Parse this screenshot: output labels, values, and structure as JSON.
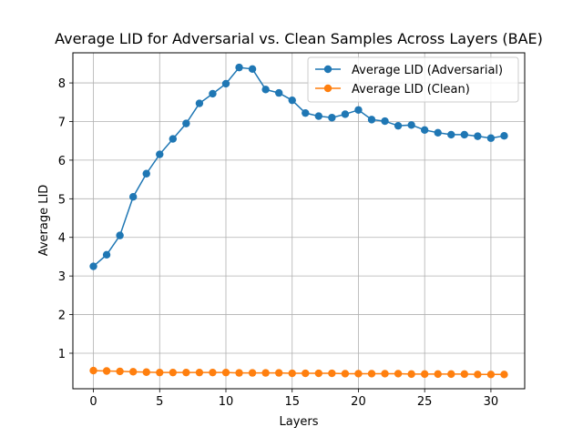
{
  "chart_data": {
    "type": "line",
    "title": "Average LID for Adversarial vs. Clean Samples Across Layers (BAE)",
    "xlabel": "Layers",
    "ylabel": "Average LID",
    "xlim": [
      -1.55,
      32.55
    ],
    "ylim": [
      0.08,
      8.78
    ],
    "xticks": [
      0,
      5,
      10,
      15,
      20,
      25,
      30
    ],
    "yticks": [
      1,
      2,
      3,
      4,
      5,
      6,
      7,
      8
    ],
    "grid": true,
    "legend_position": "upper right",
    "x": [
      0,
      1,
      2,
      3,
      4,
      5,
      6,
      7,
      8,
      9,
      10,
      11,
      12,
      13,
      14,
      15,
      16,
      17,
      18,
      19,
      20,
      21,
      22,
      23,
      24,
      25,
      26,
      27,
      28,
      29,
      30,
      31
    ],
    "series": [
      {
        "name": "Average LID (Adversarial)",
        "color": "#1f77b4",
        "values": [
          3.25,
          3.55,
          4.05,
          5.05,
          5.65,
          6.15,
          6.55,
          6.95,
          7.47,
          7.72,
          7.98,
          8.4,
          8.36,
          7.83,
          7.74,
          7.55,
          7.22,
          7.14,
          7.1,
          7.19,
          7.3,
          7.05,
          7.01,
          6.89,
          6.91,
          6.78,
          6.71,
          6.66,
          6.66,
          6.62,
          6.57,
          6.63
        ]
      },
      {
        "name": "Average LID (Clean)",
        "color": "#ff7f0e",
        "values": [
          0.55,
          0.54,
          0.53,
          0.52,
          0.51,
          0.5,
          0.5,
          0.5,
          0.5,
          0.5,
          0.5,
          0.49,
          0.49,
          0.49,
          0.49,
          0.48,
          0.48,
          0.48,
          0.48,
          0.47,
          0.47,
          0.47,
          0.47,
          0.47,
          0.46,
          0.46,
          0.46,
          0.46,
          0.46,
          0.45,
          0.45,
          0.45
        ]
      }
    ]
  }
}
